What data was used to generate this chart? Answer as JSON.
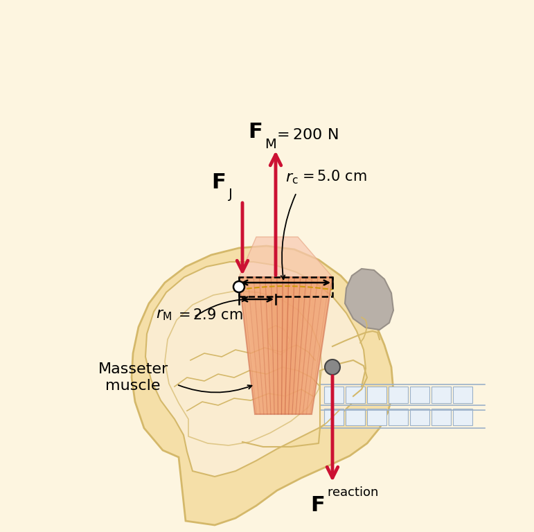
{
  "bg_color": "#fdf5e0",
  "skin_fill": "#f5dfa8",
  "skin_edge": "#d4b86a",
  "skull_inner_fill": "#faecd0",
  "skull_inner_edge": "#d4b86a",
  "muscle_fill": "#f0a070",
  "muscle_fiber_color": "#c86848",
  "muscle_edge": "#d07050",
  "muscle_light": "#f8c8a8",
  "gray_bone_fill": "#b8b0a8",
  "gray_bone_edge": "#989088",
  "tooth_fill": "#e8f0f8",
  "tooth_edge": "#9ab0c8",
  "arrow_color": "#cc1133",
  "black": "#000000",
  "gold_dash": "#cc9900",
  "pivot_fill": "#ffffff",
  "joint_fill": "#888888",
  "figsize": [
    7.71,
    7.68
  ],
  "dpi": 100,
  "fm_text": "= 200 N",
  "rc_text": "= 5.0 cm",
  "rm_text": "= 2.9 cm",
  "masseter_text": "Masseter\nmuscle"
}
